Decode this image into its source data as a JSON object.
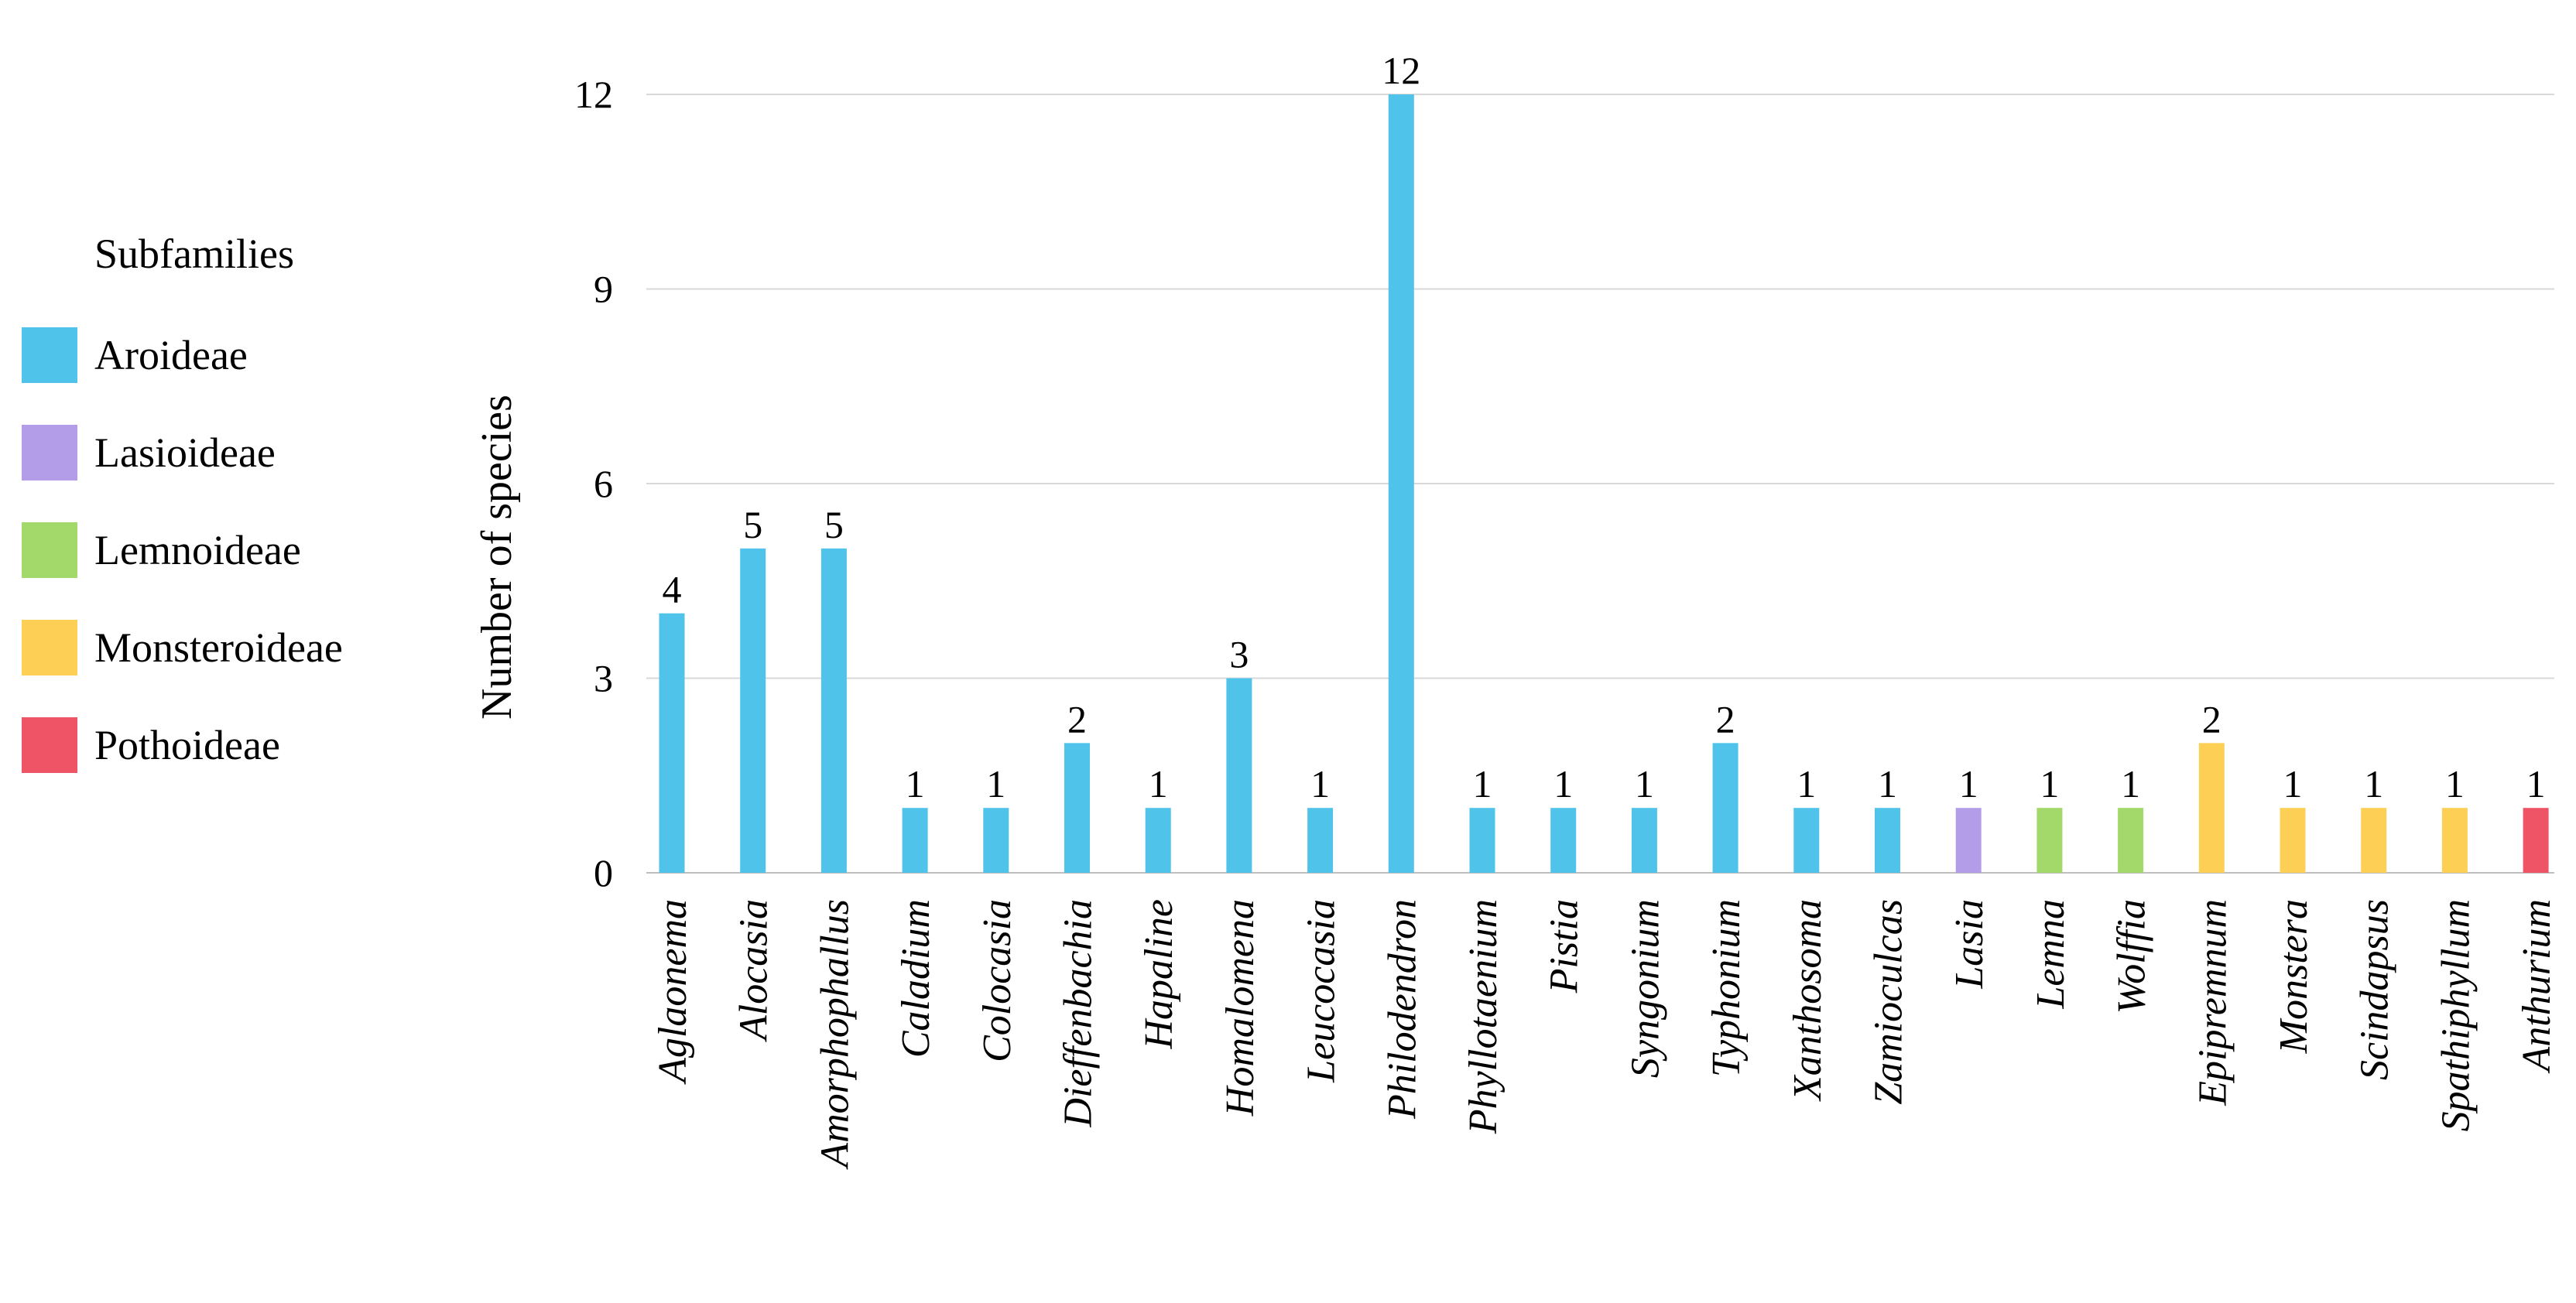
{
  "chart_data": {
    "type": "bar",
    "title": "",
    "xlabel": "",
    "ylabel": "Number of species",
    "ylim": [
      0,
      12
    ],
    "yticks": [
      0,
      3,
      6,
      9,
      12
    ],
    "grid": true,
    "legend_position": "left",
    "legend": {
      "title": "Subfamilies",
      "entries": [
        {
          "name": "Aroideae",
          "color": "#4fc3ea"
        },
        {
          "name": "Lasioideae",
          "color": "#b39ce8"
        },
        {
          "name": "Lemnoideae",
          "color": "#a3d86a"
        },
        {
          "name": "Monsteroideae",
          "color": "#fdcf55"
        },
        {
          "name": "Pothoideae",
          "color": "#ef5466"
        }
      ]
    },
    "categories": [
      "Aglaonema",
      "Alocasia",
      "Amorphophallus",
      "Caladium",
      "Colocasia",
      "Dieffenbachia",
      "Hapaline",
      "Homalomena",
      "Leucocasia",
      "Philodendron",
      "Phyllotaenium",
      "Pistia",
      "Syngonium",
      "Typhonium",
      "Xanthosoma",
      "Zamioculcas",
      "Lasia",
      "Lemna",
      "Wolffia",
      "Epipremnum",
      "Monstera",
      "Scindapsus",
      "Spathiphyllum",
      "Anthurium"
    ],
    "values": [
      4,
      5,
      5,
      1,
      1,
      2,
      1,
      3,
      1,
      12,
      1,
      1,
      1,
      2,
      1,
      1,
      1,
      1,
      1,
      2,
      1,
      1,
      1,
      1
    ],
    "subfamily": [
      "Aroideae",
      "Aroideae",
      "Aroideae",
      "Aroideae",
      "Aroideae",
      "Aroideae",
      "Aroideae",
      "Aroideae",
      "Aroideae",
      "Aroideae",
      "Aroideae",
      "Aroideae",
      "Aroideae",
      "Aroideae",
      "Aroideae",
      "Aroideae",
      "Lasioideae",
      "Lemnoideae",
      "Lemnoideae",
      "Monsteroideae",
      "Monsteroideae",
      "Monsteroideae",
      "Monsteroideae",
      "Pothoideae"
    ]
  }
}
